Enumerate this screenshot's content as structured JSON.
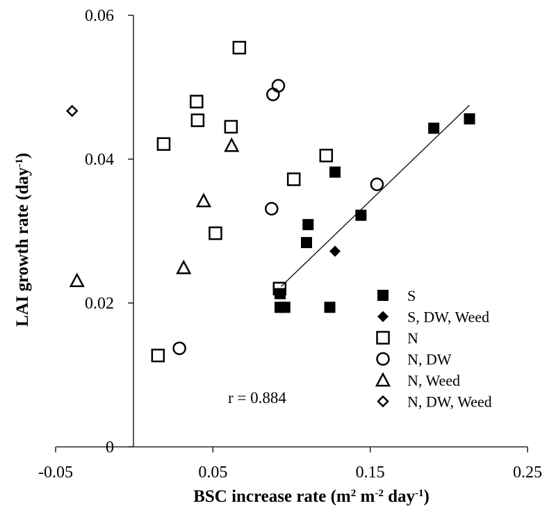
{
  "chart_data": {
    "type": "scatter",
    "xlabel": "BSC increase rate (m² m⁻² day⁻¹)",
    "ylabel": "LAI growth rate (day⁻¹)",
    "xlim": [
      -0.05,
      0.25
    ],
    "ylim": [
      0,
      0.06
    ],
    "xticks": [
      -0.05,
      0.05,
      0.15,
      0.25
    ],
    "xtick_labels": [
      "-0.05",
      "0.05",
      "0.15",
      "0.25"
    ],
    "yticks": [
      0,
      0.02,
      0.04,
      0.06
    ],
    "ytick_labels": [
      "0",
      "0.02",
      "0.04",
      "0.06"
    ],
    "grid": false,
    "legend_position": "bottom-right",
    "annotation": "r = 0.884",
    "series": [
      {
        "name": "S",
        "marker": "filled-square",
        "x": [
          0.0927,
          0.0957,
          0.0927,
          0.1095,
          0.1105,
          0.1243,
          0.1276,
          0.1441,
          0.1904,
          0.2131
        ],
        "y": [
          0.0213,
          0.0194,
          0.0194,
          0.0284,
          0.0309,
          0.0194,
          0.0382,
          0.0322,
          0.0443,
          0.0456
        ]
      },
      {
        "name": "S, DW, Weed",
        "marker": "filled-diamond",
        "x": [
          0.1276
        ],
        "y": [
          0.0272
        ]
      },
      {
        "name": "N",
        "marker": "open-square",
        "x": [
          0.0151,
          0.0187,
          0.0396,
          0.0403,
          0.0516,
          0.0615,
          0.0668,
          0.0924,
          0.1014,
          0.122
        ],
        "y": [
          0.0127,
          0.0421,
          0.048,
          0.0454,
          0.0297,
          0.0445,
          0.0555,
          0.022,
          0.0372,
          0.0405
        ]
      },
      {
        "name": "N, DW",
        "marker": "open-circle",
        "x": [
          0.0287,
          0.0873,
          0.0882,
          0.0916,
          0.1543
        ],
        "y": [
          0.0137,
          0.0331,
          0.049,
          0.0502,
          0.0365
        ]
      },
      {
        "name": "N, Weed",
        "marker": "open-triangle",
        "x": [
          -0.0364,
          0.0314,
          0.0441,
          0.0619
        ],
        "y": [
          0.0231,
          0.0249,
          0.0342,
          0.0419
        ]
      },
      {
        "name": "N, DW, Weed",
        "marker": "open-diamond",
        "x": [
          -0.0395
        ],
        "y": [
          0.0467
        ]
      }
    ],
    "trendline": {
      "x": [
        0.0934,
        0.2131
      ],
      "y": [
        0.0223,
        0.0475
      ]
    }
  }
}
